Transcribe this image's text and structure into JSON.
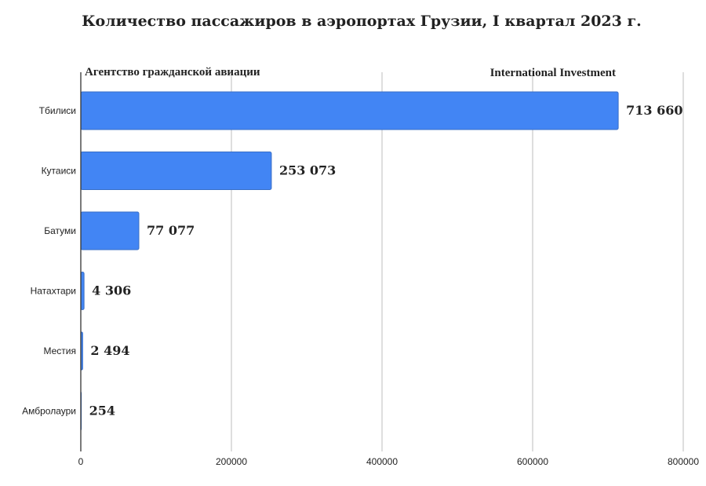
{
  "chart_data": {
    "type": "bar",
    "orientation": "horizontal",
    "title": "Количество пассажиров в аэропортах Грузии, I квартал 2023 г.",
    "source_left": "Агентство гражданской авиации",
    "source_right": "International Investment",
    "categories": [
      "Тбилиси",
      "Кутаиси",
      "Батуми",
      "Натахтари",
      "Местия",
      "Амбролаури"
    ],
    "values": [
      713660,
      253073,
      77077,
      4306,
      2494,
      254
    ],
    "value_labels": [
      "713 660",
      "253 073",
      "77 077",
      "4 306",
      "2 494",
      "254"
    ],
    "xlim": [
      0,
      800000
    ],
    "xticks": [
      0,
      200000,
      400000,
      600000,
      800000
    ],
    "xtick_labels": [
      "0",
      "200000",
      "400000",
      "600000",
      "800000"
    ],
    "grid": true,
    "legend": "none",
    "bar_color": "#4285f4",
    "bar_edge_color": "#3a6fc6"
  }
}
